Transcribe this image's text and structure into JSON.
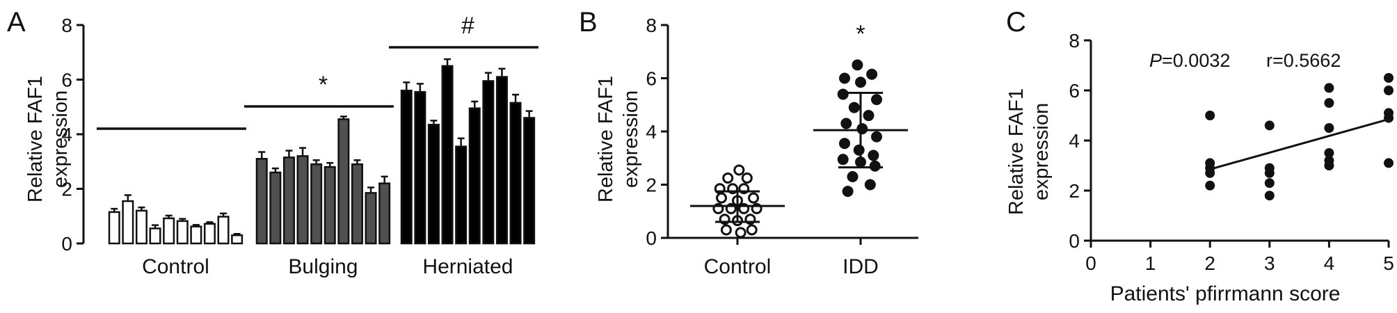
{
  "chart_data": [
    {
      "panel_label": "A",
      "type": "bar",
      "ylabel": [
        "Relative FAF1",
        "expression"
      ],
      "ylim": [
        0,
        8
      ],
      "yticks": [
        0,
        2,
        4,
        6,
        8
      ],
      "groups": [
        {
          "label": "Control",
          "color": "#ffffff",
          "values": [
            1.15,
            1.55,
            1.2,
            0.55,
            0.92,
            0.82,
            0.62,
            0.72,
            0.98,
            0.3
          ],
          "errors": [
            0.12,
            0.22,
            0.12,
            0.12,
            0.1,
            0.08,
            0.06,
            0.06,
            0.12,
            0.05
          ],
          "significance": ""
        },
        {
          "label": "Bulging",
          "color": "#505050",
          "values": [
            3.1,
            2.6,
            3.15,
            3.2,
            2.9,
            2.8,
            4.55,
            2.9,
            1.85,
            2.2
          ],
          "errors": [
            0.25,
            0.15,
            0.25,
            0.3,
            0.15,
            0.15,
            0.1,
            0.15,
            0.2,
            0.25
          ],
          "significance": "*"
        },
        {
          "label": "Herniated",
          "color": "#000000",
          "values": [
            5.6,
            5.55,
            4.35,
            6.5,
            3.55,
            4.95,
            5.95,
            6.1,
            5.15,
            4.6
          ],
          "errors": [
            0.3,
            0.3,
            0.15,
            0.25,
            0.3,
            0.25,
            0.3,
            0.3,
            0.3,
            0.25
          ],
          "significance": "#"
        }
      ]
    },
    {
      "panel_label": "B",
      "type": "scatter",
      "ylabel": [
        "Relative FAF1",
        "expression"
      ],
      "ylim": [
        0,
        8
      ],
      "yticks": [
        0,
        2,
        4,
        6,
        8
      ],
      "significance": "*",
      "groups": [
        {
          "label": "Control",
          "marker": "open-circle",
          "mean": 1.2,
          "sd_low": 0.6,
          "sd_high": 1.75,
          "points": [
            {
              "x": 0.02,
              "y": 2.55
            },
            {
              "x": -0.12,
              "y": 2.25
            },
            {
              "x": 0.12,
              "y": 2.25
            },
            {
              "x": -0.22,
              "y": 1.85
            },
            {
              "x": -0.06,
              "y": 1.85
            },
            {
              "x": 0.08,
              "y": 1.85
            },
            {
              "x": -0.2,
              "y": 1.5
            },
            {
              "x": 0.0,
              "y": 1.4
            },
            {
              "x": 0.2,
              "y": 1.5
            },
            {
              "x": -0.24,
              "y": 1.1
            },
            {
              "x": -0.08,
              "y": 1.1
            },
            {
              "x": 0.08,
              "y": 1.1
            },
            {
              "x": 0.24,
              "y": 1.1
            },
            {
              "x": -0.16,
              "y": 0.7
            },
            {
              "x": 0.0,
              "y": 0.65
            },
            {
              "x": 0.16,
              "y": 0.7
            },
            {
              "x": -0.14,
              "y": 0.3
            },
            {
              "x": 0.04,
              "y": 0.2
            },
            {
              "x": 0.18,
              "y": 0.3
            }
          ]
        },
        {
          "label": "IDD",
          "marker": "filled-circle",
          "mean": 4.05,
          "sd_low": 2.65,
          "sd_high": 5.45,
          "points": [
            {
              "x": -0.04,
              "y": 6.5
            },
            {
              "x": 0.14,
              "y": 6.15
            },
            {
              "x": -0.2,
              "y": 6.0
            },
            {
              "x": 0.0,
              "y": 5.85
            },
            {
              "x": -0.22,
              "y": 5.4
            },
            {
              "x": 0.2,
              "y": 5.2
            },
            {
              "x": -0.08,
              "y": 4.9
            },
            {
              "x": 0.1,
              "y": 4.6
            },
            {
              "x": -0.18,
              "y": 4.3
            },
            {
              "x": 0.02,
              "y": 4.1
            },
            {
              "x": 0.2,
              "y": 3.8
            },
            {
              "x": -0.2,
              "y": 3.55
            },
            {
              "x": -0.02,
              "y": 3.3
            },
            {
              "x": 0.16,
              "y": 3.1
            },
            {
              "x": -0.22,
              "y": 2.95
            },
            {
              "x": 0.0,
              "y": 2.85
            },
            {
              "x": 0.18,
              "y": 2.7
            },
            {
              "x": -0.1,
              "y": 2.3
            },
            {
              "x": 0.12,
              "y": 2.0
            },
            {
              "x": -0.16,
              "y": 1.75
            }
          ]
        }
      ]
    },
    {
      "panel_label": "C",
      "type": "scatter",
      "xlabel": "Patients' pfirrmann score",
      "ylabel": [
        "Relative FAF1",
        "expression"
      ],
      "xlim": [
        0,
        5
      ],
      "ylim": [
        0,
        8
      ],
      "xticks": [
        0,
        1,
        2,
        3,
        4,
        5
      ],
      "yticks": [
        0,
        2,
        4,
        6,
        8
      ],
      "stat_p_symbol": "P",
      "stat_p_value": "=0.0032",
      "stat_r": "r=0.5662",
      "fit_line": {
        "x": [
          2,
          5
        ],
        "y": [
          2.85,
          4.85
        ]
      },
      "points": [
        {
          "x": 2,
          "y": 5.0
        },
        {
          "x": 2,
          "y": 3.1
        },
        {
          "x": 2,
          "y": 2.9
        },
        {
          "x": 2,
          "y": 2.7
        },
        {
          "x": 2,
          "y": 2.2
        },
        {
          "x": 3,
          "y": 4.6
        },
        {
          "x": 3,
          "y": 2.9
        },
        {
          "x": 3,
          "y": 2.7
        },
        {
          "x": 3,
          "y": 2.3
        },
        {
          "x": 3,
          "y": 1.8
        },
        {
          "x": 4,
          "y": 6.1
        },
        {
          "x": 4,
          "y": 5.5
        },
        {
          "x": 4,
          "y": 4.5
        },
        {
          "x": 4,
          "y": 3.5
        },
        {
          "x": 4,
          "y": 3.2
        },
        {
          "x": 4,
          "y": 3.0
        },
        {
          "x": 5,
          "y": 6.5
        },
        {
          "x": 5,
          "y": 6.0
        },
        {
          "x": 5,
          "y": 5.1
        },
        {
          "x": 5,
          "y": 4.9
        },
        {
          "x": 5,
          "y": 3.1
        }
      ]
    }
  ]
}
